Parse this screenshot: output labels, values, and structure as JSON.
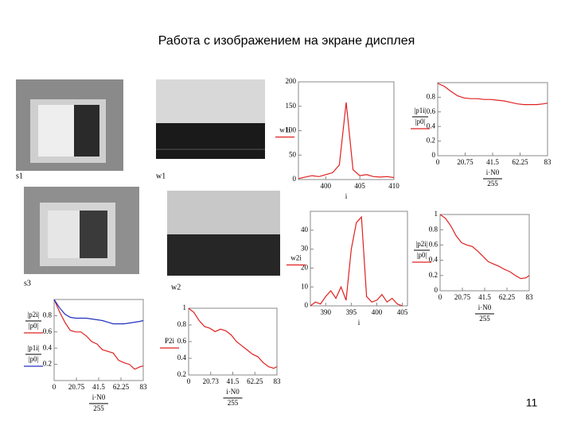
{
  "title": "Работа с изображением на экране дисплея",
  "page_number": "11",
  "images": [
    "s1",
    "w1",
    "s3",
    "w2"
  ],
  "chart_data": [
    {
      "type": "line",
      "xlabel": "i",
      "xlim": [
        396,
        410
      ],
      "xticks": [
        400,
        405,
        410
      ],
      "ylim": [
        0,
        200
      ],
      "yticks": [
        0,
        50,
        100,
        150,
        200
      ],
      "x": [
        396,
        397,
        398,
        399,
        400,
        401,
        402,
        403,
        404,
        405,
        406,
        407,
        408,
        409,
        410
      ],
      "series": [
        {
          "name": "w1i",
          "color": "#e02020",
          "values": [
            2,
            5,
            8,
            6,
            10,
            14,
            30,
            158,
            20,
            8,
            10,
            6,
            5,
            6,
            4
          ]
        }
      ]
    },
    {
      "type": "line",
      "xlabel": "i·N0",
      "xlabel_over": "255",
      "xlim": [
        0,
        83
      ],
      "xticks": [
        0,
        20.75,
        41.5,
        62.25,
        83
      ],
      "ylim": [
        0,
        1
      ],
      "yticks": [
        0,
        0.2,
        0.4,
        0.6,
        0.8
      ],
      "x": [
        0,
        5,
        10,
        15,
        20,
        25,
        30,
        35,
        40,
        45,
        50,
        55,
        60,
        65,
        70,
        75,
        80,
        83
      ],
      "series": [
        {
          "name": "|p1i|",
          "over": "|p0|",
          "color": "#e02020",
          "values": [
            0.99,
            0.95,
            0.88,
            0.82,
            0.79,
            0.78,
            0.78,
            0.77,
            0.77,
            0.76,
            0.75,
            0.73,
            0.71,
            0.7,
            0.7,
            0.7,
            0.71,
            0.72
          ]
        }
      ]
    },
    {
      "type": "line",
      "xlabel": "i",
      "xlim": [
        387,
        406
      ],
      "xticks": [
        390,
        395,
        400,
        405
      ],
      "ylim": [
        0,
        50
      ],
      "yticks": [
        0,
        10,
        20,
        30,
        40
      ],
      "x": [
        387,
        388,
        389,
        390,
        391,
        392,
        393,
        394,
        395,
        396,
        397,
        398,
        399,
        400,
        401,
        402,
        403,
        404,
        405
      ],
      "series": [
        {
          "name": "w2i",
          "color": "#e02020",
          "values": [
            0,
            2,
            1,
            5,
            8,
            4,
            10,
            3,
            30,
            44,
            47,
            5,
            2,
            3,
            6,
            2,
            4,
            1,
            0
          ]
        }
      ]
    },
    {
      "type": "line",
      "xlabel": "i·N0",
      "xlabel_over": "255",
      "xlim": [
        0,
        83
      ],
      "xticks": [
        0,
        20.75,
        41.5,
        62.25,
        83
      ],
      "ylim": [
        0,
        1
      ],
      "yticks": [
        0,
        0.2,
        0.4,
        0.6,
        0.8,
        1
      ],
      "x": [
        0,
        5,
        10,
        15,
        20,
        25,
        30,
        35,
        40,
        45,
        50,
        55,
        60,
        65,
        70,
        75,
        80,
        83
      ],
      "series": [
        {
          "name": "|p2i|",
          "over": "|p0|",
          "color": "#e02020",
          "values": [
            1.0,
            0.95,
            0.85,
            0.72,
            0.63,
            0.6,
            0.58,
            0.52,
            0.45,
            0.38,
            0.35,
            0.32,
            0.28,
            0.25,
            0.2,
            0.16,
            0.17,
            0.2
          ]
        }
      ]
    },
    {
      "type": "line",
      "xlabel": "i·N0",
      "xlabel_over": "255",
      "xlim": [
        0,
        83
      ],
      "xticks": [
        0,
        20.75,
        41.5,
        62.25,
        83
      ],
      "ylim": [
        0,
        1
      ],
      "yticks": [
        0.2,
        0.4,
        0.6,
        0.8
      ],
      "x": [
        0,
        5,
        10,
        15,
        20,
        25,
        30,
        35,
        40,
        45,
        50,
        55,
        60,
        65,
        70,
        75,
        80,
        83
      ],
      "series": [
        {
          "name": "|p2i|",
          "over": "|p0|",
          "color": "#e02020",
          "values": [
            1.0,
            0.85,
            0.72,
            0.62,
            0.6,
            0.6,
            0.55,
            0.48,
            0.45,
            0.38,
            0.36,
            0.34,
            0.25,
            0.22,
            0.2,
            0.14,
            0.17,
            0.18
          ]
        },
        {
          "name": "|p1i|",
          "over": "|p0|",
          "color": "#2030c0",
          "values": [
            1.0,
            0.9,
            0.82,
            0.78,
            0.77,
            0.77,
            0.77,
            0.76,
            0.75,
            0.74,
            0.72,
            0.7,
            0.7,
            0.7,
            0.71,
            0.72,
            0.73,
            0.74
          ]
        }
      ]
    },
    {
      "type": "line",
      "xlabel": "i·N0",
      "xlabel_over": "255",
      "xlim": [
        0,
        83
      ],
      "xticks": [
        0,
        20.73,
        41.5,
        62.25,
        83
      ],
      "ylim": [
        0.2,
        1
      ],
      "yticks": [
        0.2,
        0.4,
        0.6,
        0.8,
        1
      ],
      "x": [
        0,
        5,
        10,
        15,
        20,
        25,
        30,
        35,
        40,
        45,
        50,
        55,
        60,
        65,
        70,
        75,
        80,
        83
      ],
      "series": [
        {
          "name": "P2i",
          "color": "#e02020",
          "values": [
            1.0,
            0.95,
            0.85,
            0.78,
            0.76,
            0.72,
            0.75,
            0.73,
            0.68,
            0.6,
            0.55,
            0.5,
            0.45,
            0.42,
            0.35,
            0.3,
            0.28,
            0.3
          ]
        }
      ]
    }
  ]
}
